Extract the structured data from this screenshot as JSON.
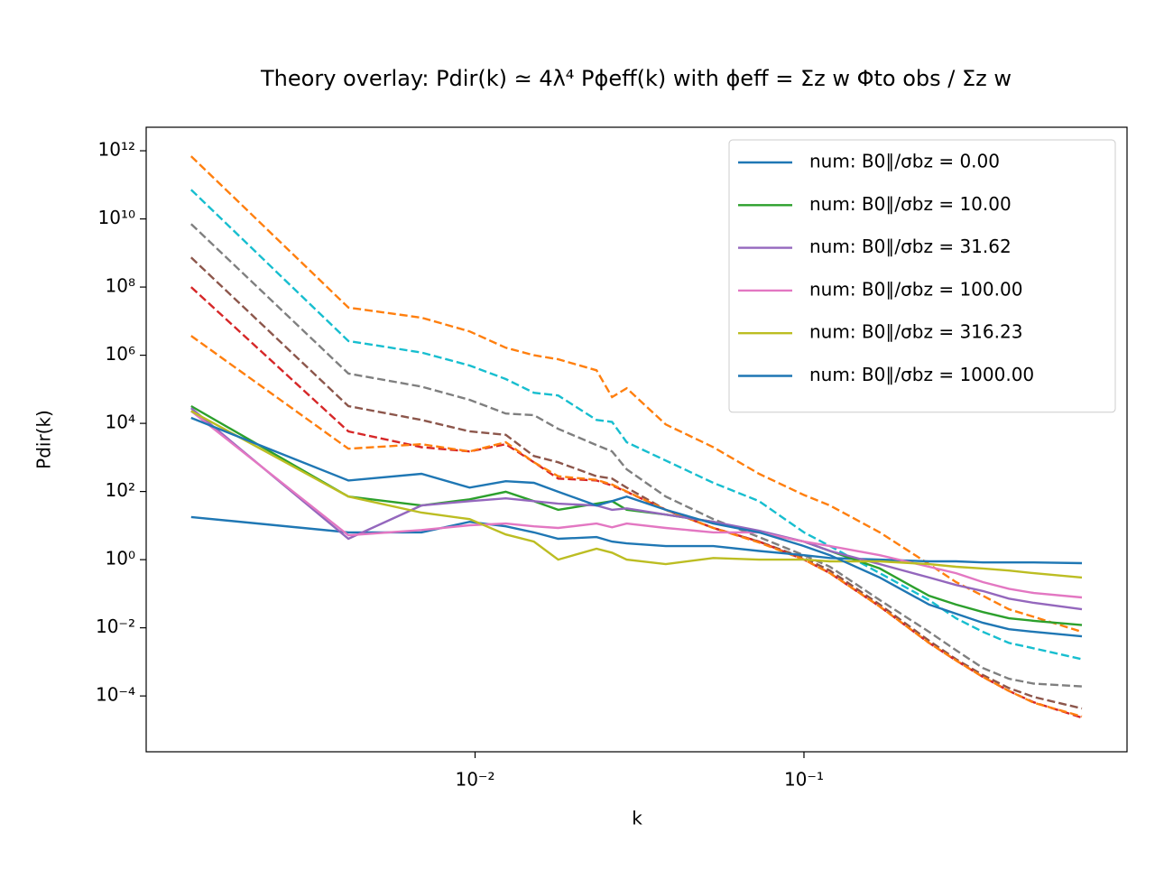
{
  "chart_data": {
    "type": "line",
    "title": "Theory overlay: Pdir(k) ≃ 4λ⁴ Pϕeff(k) with ϕeff = Σz w Φto obs / Σz w",
    "xlabel": "k",
    "ylabel": "Pdir(k)",
    "xscale": "log",
    "yscale": "log",
    "xlim": [
      0.001,
      0.96
    ],
    "ylim": [
      2.3e-06,
      4900000000000.0
    ],
    "xticks": [
      {
        "value": 0.01,
        "label": "10⁻²"
      },
      {
        "value": 0.1,
        "label": "10⁻¹"
      }
    ],
    "yticks": [
      {
        "value": 0.0001,
        "label": "10⁻⁴"
      },
      {
        "value": 0.01,
        "label": "10⁻²"
      },
      {
        "value": 1,
        "label": "10⁰"
      },
      {
        "value": 100,
        "label": "10²"
      },
      {
        "value": 10000.0,
        "label": "10⁴"
      },
      {
        "value": 1000000.0,
        "label": "10⁶"
      },
      {
        "value": 100000000.0,
        "label": "10⁸"
      },
      {
        "value": 10000000000.0,
        "label": "10¹⁰"
      },
      {
        "value": 1000000000000.0,
        "label": "10¹²"
      }
    ],
    "legend": "upper right",
    "x": [
      0.00137,
      0.00412,
      0.00687,
      0.00962,
      0.0124,
      0.0151,
      0.0179,
      0.0234,
      0.0261,
      0.0289,
      0.038,
      0.053,
      0.073,
      0.1,
      0.12,
      0.17,
      0.24,
      0.29,
      0.35,
      0.42,
      0.5,
      0.7
    ],
    "series": [
      {
        "color": "#ff7f0e",
        "linestyle": "dashed",
        "values": [
          690000000000.0,
          25000000.0,
          12600000.0,
          5000000.0,
          1660000.0,
          1000000.0,
          760000.0,
          360000.0,
          59000.0,
          107000.0,
          9300.0,
          2000.0,
          330,
          79,
          39,
          6.3,
          0.74,
          0.22,
          0.087,
          0.035,
          0.021,
          0.0076
        ]
      },
      {
        "color": "#17becf",
        "linestyle": "dashed",
        "values": [
          72000000000.0,
          2600000.0,
          1200000.0,
          500000.0,
          200000.0,
          79000.0,
          66000.0,
          12600.0,
          11000.0,
          2800.0,
          810,
          180,
          52,
          6.3,
          2.5,
          0.4,
          0.065,
          0.019,
          0.0076,
          0.0036,
          0.0025,
          0.0012
        ]
      },
      {
        "color": "#7f7f7f",
        "linestyle": "dashed",
        "values": [
          7100000000.0,
          290000.0,
          120000.0,
          49000.0,
          19500.0,
          17400.0,
          6900.0,
          2300.0,
          1500.0,
          450,
          71,
          15.5,
          4.6,
          1.35,
          0.62,
          0.065,
          0.0076,
          0.0022,
          0.00066,
          0.00032,
          0.00023,
          0.00019
        ]
      },
      {
        "color": "#8c564b",
        "linestyle": "dashed",
        "values": [
          740000000.0,
          32000.0,
          12600.0,
          5800.0,
          4600.0,
          1100.0,
          720,
          280,
          240,
          130,
          29,
          8.5,
          3.4,
          1.12,
          0.48,
          0.048,
          0.0042,
          0.0012,
          0.00041,
          0.00017,
          9.3e-05,
          4.3e-05
        ]
      },
      {
        "color": "#d62728",
        "linestyle": "dashed",
        "values": [
          100000000.0,
          5800.0,
          2000.0,
          1500.0,
          2450.0,
          720,
          240,
          210,
          150,
          98,
          29,
          8.5,
          3.4,
          1,
          0.4,
          0.042,
          0.0036,
          0.0011,
          0.00036,
          0.00014,
          6.5e-05,
          2.3e-05
        ]
      },
      {
        "color": "#ff7f0e",
        "linestyle": "dashed",
        "values": [
          3700000.0,
          1800.0,
          2450.0,
          1500.0,
          2800.0,
          720,
          280,
          220,
          160,
          100,
          29,
          8.5,
          3.2,
          1,
          0.4,
          0.042,
          0.0036,
          0.0011,
          0.00036,
          0.00014,
          6.3e-05,
          2.5e-05
        ]
      },
      {
        "name": "num: B0∥/σbz = 0.00",
        "color": "#1f77b4",
        "linestyle": "solid",
        "values": [
          17.8,
          6.3,
          6.3,
          12.9,
          9.5,
          6.3,
          4.1,
          4.6,
          3.4,
          3.0,
          2.5,
          2.5,
          1.8,
          1.35,
          1.12,
          1,
          0.89,
          0.89,
          0.83,
          0.83,
          0.83,
          0.79
        ]
      },
      {
        "name": "num: B0∥/σbz = 10.00",
        "color": "#2ca02c",
        "linestyle": "solid",
        "values": [
          32000.0,
          71,
          39,
          59,
          98,
          52,
          29,
          44,
          52,
          29,
          21,
          12.9,
          6.3,
          3.4,
          1.8,
          0.55,
          0.087,
          0.048,
          0.029,
          0.019,
          0.016,
          0.012
        ]
      },
      {
        "name": "num: B0∥/σbz = 31.62",
        "color": "#9467bd",
        "linestyle": "solid",
        "values": [
          28000.0,
          4.1,
          39,
          52,
          63,
          52,
          44,
          39,
          29,
          32,
          21,
          12.9,
          7.1,
          3.4,
          1.8,
          0.74,
          0.3,
          0.18,
          0.12,
          0.072,
          0.054,
          0.035
        ]
      },
      {
        "name": "num: B0∥/σbz = 100.00",
        "color": "#e377c2",
        "linestyle": "solid",
        "values": [
          23000.0,
          5.2,
          7.4,
          10.2,
          11.5,
          9.5,
          8.5,
          11.5,
          8.9,
          11.5,
          8.5,
          6.3,
          6.3,
          3.4,
          2.5,
          1.35,
          0.62,
          0.4,
          0.22,
          0.14,
          0.105,
          0.078
        ]
      },
      {
        "name": "num: B0∥/σbz = 316.23",
        "color": "#bcbd22",
        "linestyle": "solid",
        "values": [
          23000.0,
          71,
          24,
          15.5,
          5.5,
          3.4,
          1,
          2.1,
          1.6,
          1,
          0.74,
          1.12,
          1,
          1,
          0.89,
          0.89,
          0.74,
          0.62,
          0.55,
          0.48,
          0.4,
          0.3
        ]
      },
      {
        "name": "num: B0∥/σbz = 1000.00",
        "color": "#1f77b4",
        "linestyle": "solid",
        "values": [
          14500.0,
          210,
          330,
          130,
          200,
          180,
          98,
          39,
          52,
          71,
          29,
          11.5,
          6.3,
          2.5,
          1.35,
          0.3,
          0.048,
          0.026,
          0.014,
          0.0091,
          0.0076,
          0.0056
        ]
      }
    ]
  }
}
